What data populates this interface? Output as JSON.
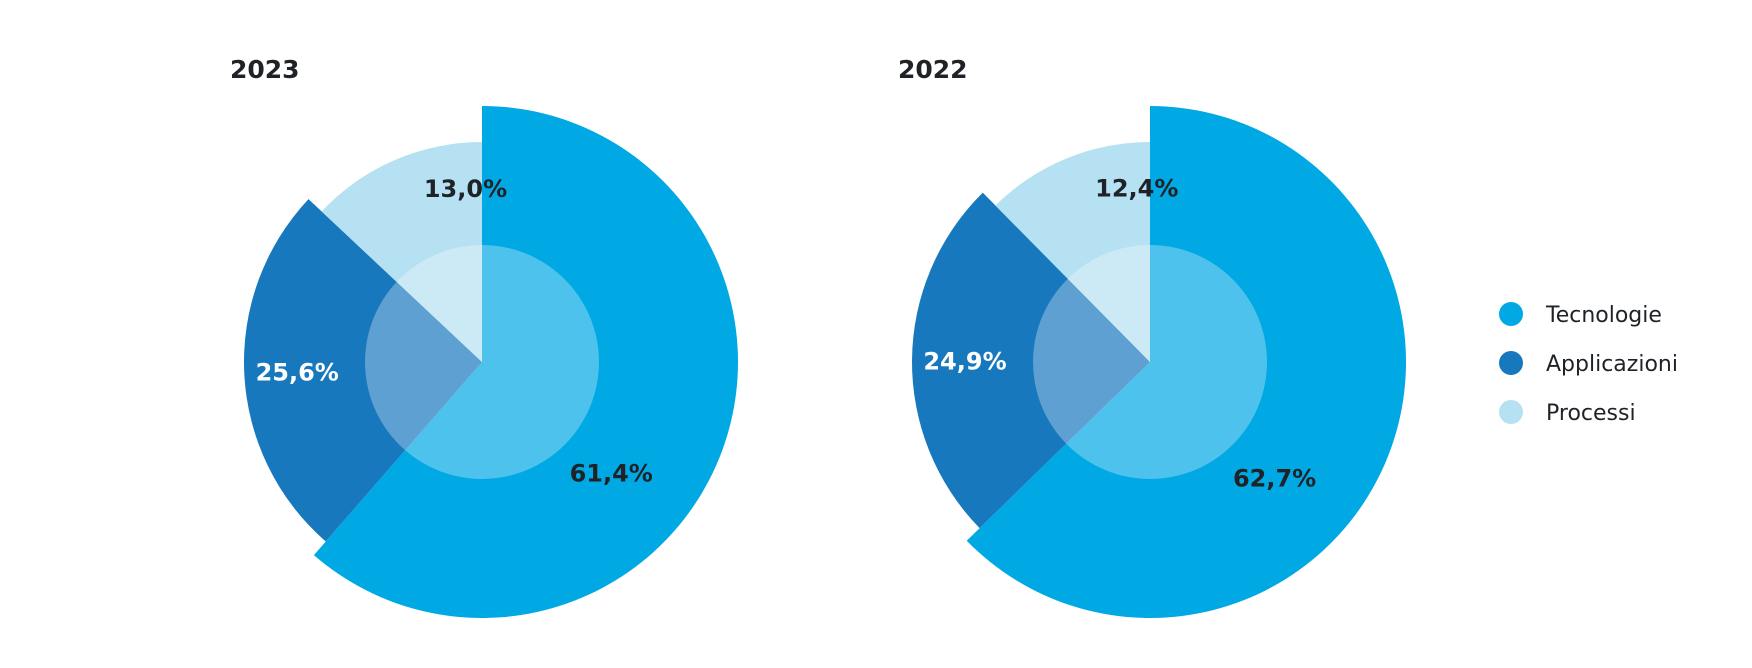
{
  "colors": {
    "tecnologie": "#00a8e4",
    "applicazioni": "#1878bd",
    "processi": "#b5e1f2"
  },
  "legend": {
    "items": [
      {
        "label": "Tecnologie",
        "color": "#00a8e4"
      },
      {
        "label": "Applicazioni",
        "color": "#1878bd"
      },
      {
        "label": "Processi",
        "color": "#b5e1f2"
      }
    ]
  },
  "chart_data": [
    {
      "type": "pie",
      "title": "2023",
      "series": [
        {
          "name": "Tecnologie",
          "value": 61.4,
          "label": "61,4%",
          "color": "#00a8e4",
          "label_color": "#1f2328"
        },
        {
          "name": "Applicazioni",
          "value": 25.6,
          "label": "25,6%",
          "color": "#1878bd",
          "label_color": "#ffffff"
        },
        {
          "name": "Processi",
          "value": 13.0,
          "label": "13,0%",
          "color": "#b5e1f2",
          "label_color": "#1f2328"
        }
      ]
    },
    {
      "type": "pie",
      "title": "2022",
      "series": [
        {
          "name": "Tecnologie",
          "value": 62.7,
          "label": "62,7%",
          "color": "#00a8e4",
          "label_color": "#1f2328"
        },
        {
          "name": "Applicazioni",
          "value": 24.9,
          "label": "24,9%",
          "color": "#1878bd",
          "label_color": "#ffffff"
        },
        {
          "name": "Processi",
          "value": 12.4,
          "label": "12,4%",
          "color": "#b5e1f2",
          "label_color": "#1f2328"
        }
      ]
    }
  ]
}
